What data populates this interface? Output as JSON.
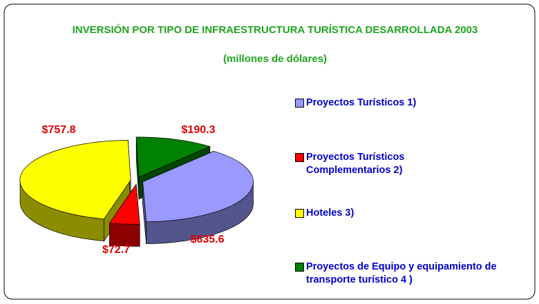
{
  "chart_data": {
    "type": "pie",
    "title": "INVERSIÓN POR TIPO DE INFRAESTRUCTURA TURÍSTICA DESARROLLADA 2003",
    "subtitle": "(millones de dólares)",
    "categories": [
      "Proyectos Turísticos 1)",
      "Proyectos Turísticos Complementarios 2)",
      "Hoteles 3)",
      "Proyectos de Equipo y equipamiento de transporte turístico 4 )"
    ],
    "values": [
      635.6,
      72.7,
      757.8,
      190.3
    ],
    "value_labels": [
      "$635.6",
      "$72.7",
      "$757.8",
      "$190.3"
    ],
    "colors": [
      "#9999ff",
      "#ff0000",
      "#ffff00",
      "#008000"
    ],
    "legend": "right"
  }
}
